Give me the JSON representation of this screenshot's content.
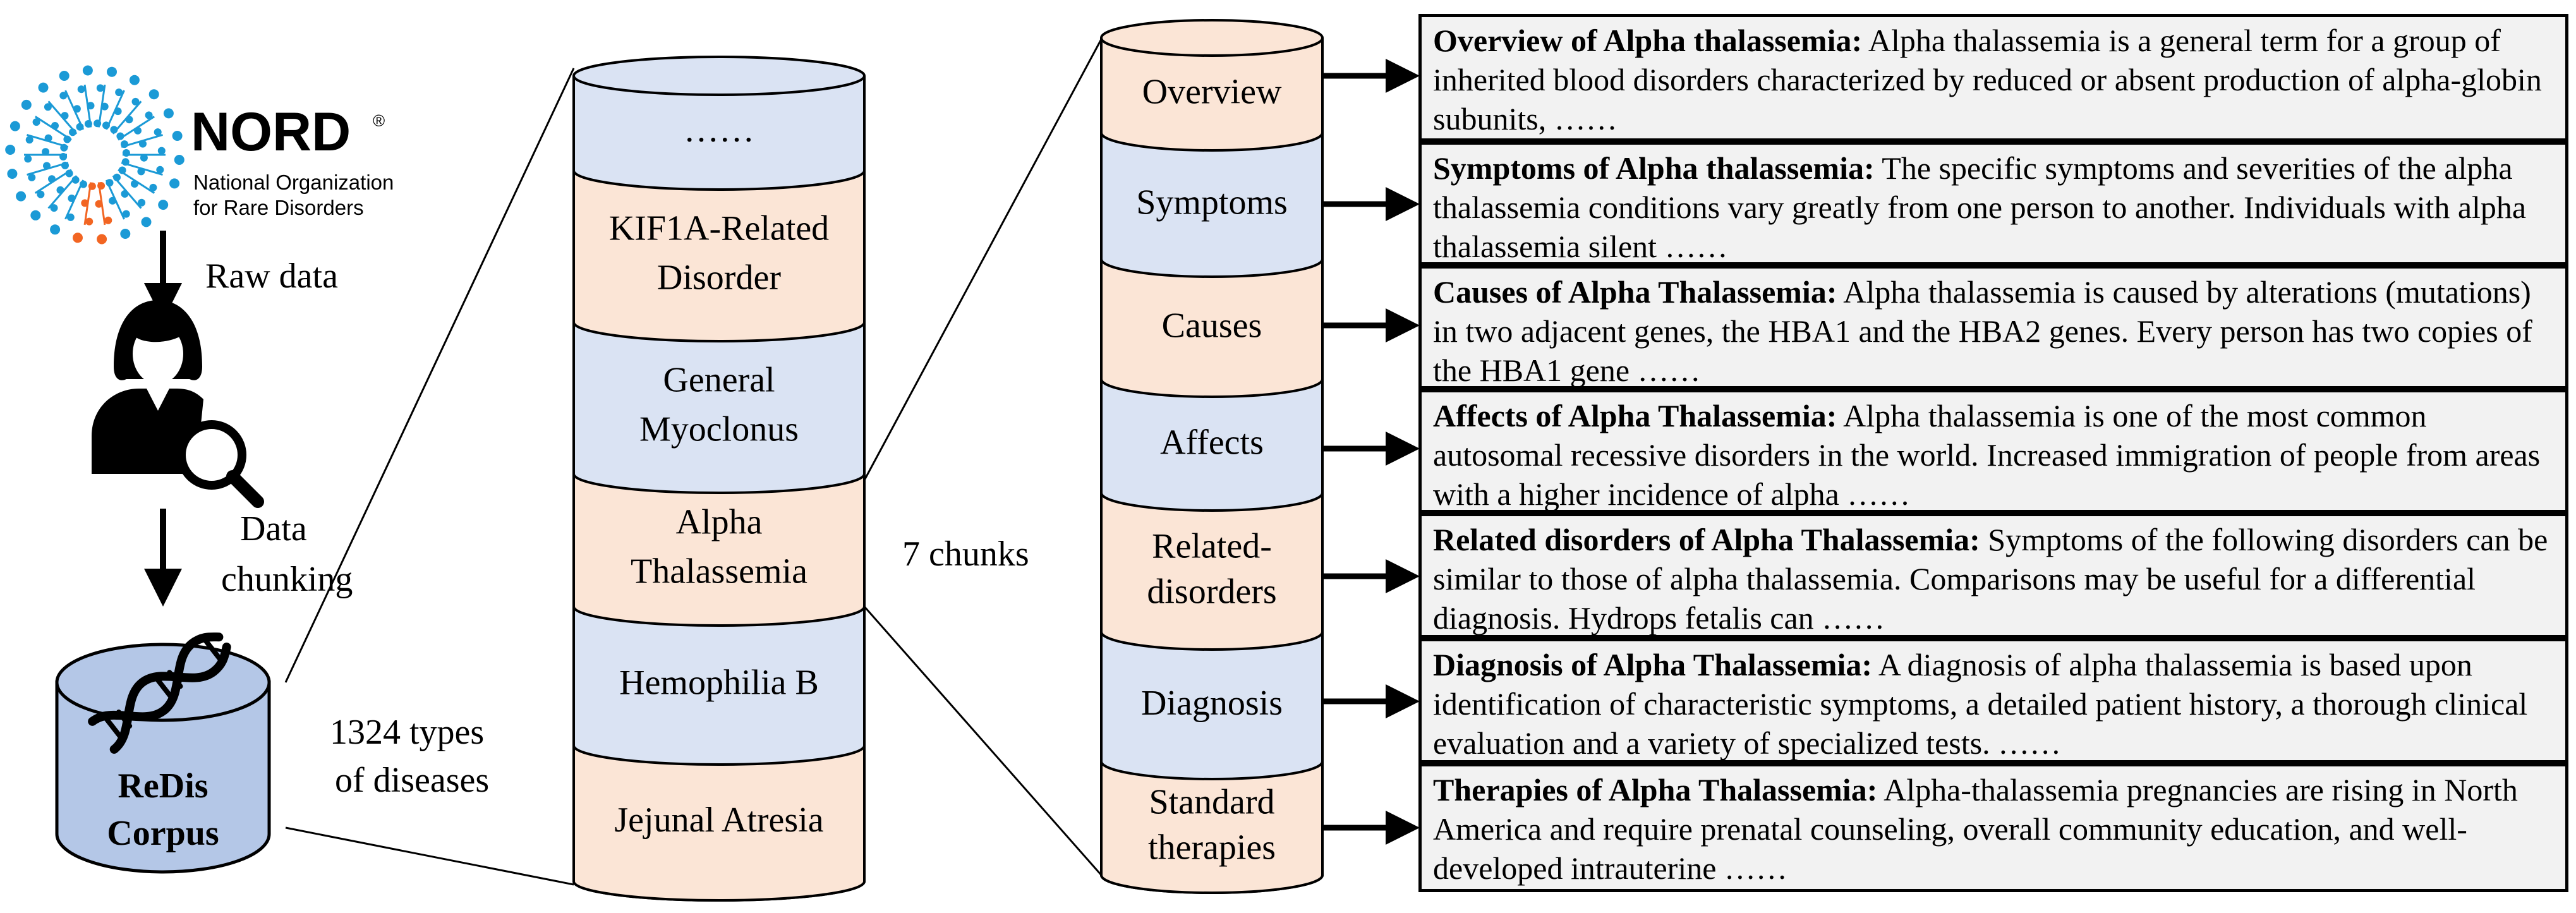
{
  "logo": {
    "name": "NORD",
    "registered_mark": "®",
    "tagline_line1": "National Organization",
    "tagline_line2": "for Rare Disorders"
  },
  "flow": {
    "step1_label": "Raw data",
    "step2_label_line1": "Data",
    "step2_label_line2": "chunking"
  },
  "corpus": {
    "label_line1": "ReDis",
    "label_line2": "Corpus",
    "count_line1": "1324 types",
    "count_line2": "of diseases"
  },
  "disease_stack": [
    {
      "lines": [
        "……"
      ],
      "color": "blue"
    },
    {
      "lines": [
        "KIF1A-Related",
        "Disorder"
      ],
      "color": "orange"
    },
    {
      "lines": [
        "General",
        "Myoclonus"
      ],
      "color": "blue"
    },
    {
      "lines": [
        "Alpha",
        "Thalassemia"
      ],
      "color": "orange"
    },
    {
      "lines": [
        "Hemophilia B"
      ],
      "color": "blue"
    },
    {
      "lines": [
        "Jejunal Atresia"
      ],
      "color": "orange"
    }
  ],
  "chunks_label": "7 chunks",
  "chunk_stack": [
    {
      "lines": [
        "Overview"
      ],
      "color": "orange"
    },
    {
      "lines": [
        "Symptoms"
      ],
      "color": "blue"
    },
    {
      "lines": [
        "Causes"
      ],
      "color": "orange"
    },
    {
      "lines": [
        "Affects"
      ],
      "color": "blue"
    },
    {
      "lines": [
        "Related-",
        "disorders"
      ],
      "color": "orange"
    },
    {
      "lines": [
        "Diagnosis"
      ],
      "color": "blue"
    },
    {
      "lines": [
        "Standard",
        "therapies"
      ],
      "color": "orange"
    }
  ],
  "text_boxes": [
    {
      "head": "Overview of Alpha thalassemia:",
      "body": " Alpha thalassemia is a general term for a group of inherited blood disorders characterized by reduced or absent production of alpha-globin subunits, ……"
    },
    {
      "head": "Symptoms of Alpha thalassemia:",
      "body": " The specific symptoms and severities of the alpha thalassemia conditions vary greatly from one person to another. Individuals with alpha thalassemia silent ……"
    },
    {
      "head": "Causes of Alpha Thalassemia:",
      "body": " Alpha thalassemia is caused by alterations (mutations) in two adjacent genes, the HBA1 and the HBA2 genes. Every person has two copies of the HBA1 gene ……"
    },
    {
      "head": "Affects of Alpha Thalassemia:",
      "body": " Alpha thalassemia is one of the most common autosomal recessive disorders in the world. Increased immigration of people from areas with a higher incidence of alpha ……"
    },
    {
      "head": "Related disorders of Alpha Thalassemia:",
      "body": " Symptoms of the following disorders can be similar to those of alpha thalassemia. Comparisons may be useful for a differential diagnosis. Hydrops fetalis can ……"
    },
    {
      "head": "Diagnosis of Alpha Thalassemia:",
      "body": " A diagnosis of alpha thalassemia is based upon identification of characteristic symptoms, a detailed patient history, a thorough clinical evaluation and a variety of specialized tests. ……"
    },
    {
      "head": "Therapies of Alpha Thalassemia:",
      "body": " Alpha-thalassemia pregnancies are rising in North America and require prenatal counseling, overall community education, and well-developed intrauterine ……"
    }
  ],
  "colors": {
    "orange_fill": "#fbe5d6",
    "blue_fill": "#dae3f3",
    "corpus_fill": "#b4c7e7",
    "nord_orange": "#f26522",
    "nord_blue": "#1b9ad6",
    "text_box_fill": "#f2f2f2"
  },
  "icons": {
    "logo": "nord-logo-icon",
    "person": "person-search-icon",
    "dna": "dna-icon"
  }
}
